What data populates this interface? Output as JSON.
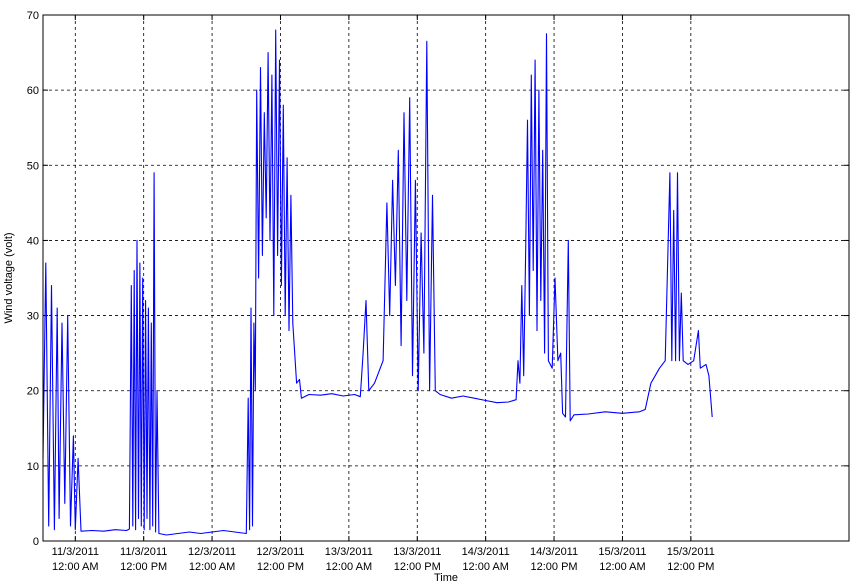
{
  "chart_data": {
    "type": "line",
    "title": "",
    "xlabel": "Time",
    "ylabel": "Wind voltage (volt)",
    "ylim": [
      0,
      70
    ],
    "xlim": [
      "2011-03-10T18:20",
      "2011-03-16T15:45"
    ],
    "yticks": [
      0,
      10,
      20,
      30,
      40,
      50,
      60,
      70
    ],
    "xticks": [
      {
        "x": "2011-03-11T00:00",
        "line1": "11/3/2011",
        "line2": "12:00 AM"
      },
      {
        "x": "2011-03-11T12:00",
        "line1": "11/3/2011",
        "line2": "12:00 PM"
      },
      {
        "x": "2011-03-12T00:00",
        "line1": "12/3/2011",
        "line2": "12:00 AM"
      },
      {
        "x": "2011-03-12T12:00",
        "line1": "12/3/2011",
        "line2": "12:00 PM"
      },
      {
        "x": "2011-03-13T00:00",
        "line1": "13/3/2011",
        "line2": "12:00 AM"
      },
      {
        "x": "2011-03-13T12:00",
        "line1": "13/3/2011",
        "line2": "12:00 PM"
      },
      {
        "x": "2011-03-14T00:00",
        "line1": "14/3/2011",
        "line2": "12:00 AM"
      },
      {
        "x": "2011-03-14T12:00",
        "line1": "14/3/2011",
        "line2": "12:00 PM"
      },
      {
        "x": "2011-03-15T00:00",
        "line1": "15/3/2011",
        "line2": "12:00 AM"
      },
      {
        "x": "2011-03-15T12:00",
        "line1": "15/3/2011",
        "line2": "12:00 PM"
      }
    ],
    "grid": true,
    "grid_style": "dashed",
    "line_color": "#0000ff",
    "series": [
      {
        "values": [
          [
            "2011-03-10T18:20",
            11
          ],
          [
            "2011-03-10T18:50",
            37
          ],
          [
            "2011-03-10T19:20",
            2
          ],
          [
            "2011-03-10T19:50",
            34
          ],
          [
            "2011-03-10T20:20",
            1.5
          ],
          [
            "2011-03-10T20:50",
            31
          ],
          [
            "2011-03-10T21:10",
            3
          ],
          [
            "2011-03-10T21:40",
            29
          ],
          [
            "2011-03-10T22:10",
            5
          ],
          [
            "2011-03-10T22:40",
            30
          ],
          [
            "2011-03-10T23:10",
            2
          ],
          [
            "2011-03-10T23:40",
            14
          ],
          [
            "2011-03-11T00:00",
            1.5
          ],
          [
            "2011-03-11T00:30",
            11
          ],
          [
            "2011-03-11T01:00",
            1.3
          ],
          [
            "2011-03-11T03:00",
            1.4
          ],
          [
            "2011-03-11T05:00",
            1.3
          ],
          [
            "2011-03-11T07:00",
            1.5
          ],
          [
            "2011-03-11T09:00",
            1.4
          ],
          [
            "2011-03-11T09:30",
            1.6
          ],
          [
            "2011-03-11T09:50",
            34
          ],
          [
            "2011-03-11T10:05",
            2
          ],
          [
            "2011-03-11T10:20",
            36
          ],
          [
            "2011-03-11T10:35",
            1.5
          ],
          [
            "2011-03-11T10:50",
            40
          ],
          [
            "2011-03-11T11:05",
            3
          ],
          [
            "2011-03-11T11:20",
            37
          ],
          [
            "2011-03-11T11:35",
            2
          ],
          [
            "2011-03-11T11:50",
            35
          ],
          [
            "2011-03-11T12:05",
            1.5
          ],
          [
            "2011-03-11T12:20",
            32
          ],
          [
            "2011-03-11T12:35",
            3
          ],
          [
            "2011-03-11T12:50",
            31
          ],
          [
            "2011-03-11T13:05",
            1.5
          ],
          [
            "2011-03-11T13:20",
            29
          ],
          [
            "2011-03-11T13:35",
            2
          ],
          [
            "2011-03-11T13:50",
            49
          ],
          [
            "2011-03-11T14:05",
            1.2
          ],
          [
            "2011-03-11T14:20",
            20
          ],
          [
            "2011-03-11T14:40",
            1.0
          ],
          [
            "2011-03-11T16:00",
            0.8
          ],
          [
            "2011-03-11T18:00",
            1.0
          ],
          [
            "2011-03-11T20:00",
            1.2
          ],
          [
            "2011-03-11T22:00",
            1.0
          ],
          [
            "2011-03-12T00:00",
            1.2
          ],
          [
            "2011-03-12T02:00",
            1.4
          ],
          [
            "2011-03-12T04:00",
            1.2
          ],
          [
            "2011-03-12T06:00",
            1.0
          ],
          [
            "2011-03-12T06:20",
            19
          ],
          [
            "2011-03-12T06:35",
            1.5
          ],
          [
            "2011-03-12T06:50",
            31
          ],
          [
            "2011-03-12T07:05",
            2
          ],
          [
            "2011-03-12T07:20",
            29
          ],
          [
            "2011-03-12T07:35",
            20
          ],
          [
            "2011-03-12T07:50",
            60
          ],
          [
            "2011-03-12T08:10",
            35
          ],
          [
            "2011-03-12T08:30",
            63
          ],
          [
            "2011-03-12T08:50",
            38
          ],
          [
            "2011-03-12T09:10",
            57
          ],
          [
            "2011-03-12T09:30",
            43
          ],
          [
            "2011-03-12T09:50",
            65
          ],
          [
            "2011-03-12T10:10",
            40
          ],
          [
            "2011-03-12T10:30",
            62
          ],
          [
            "2011-03-12T10:50",
            30
          ],
          [
            "2011-03-12T11:10",
            68
          ],
          [
            "2011-03-12T11:30",
            38
          ],
          [
            "2011-03-12T11:50",
            64
          ],
          [
            "2011-03-12T12:10",
            34
          ],
          [
            "2011-03-12T12:30",
            58
          ],
          [
            "2011-03-12T12:50",
            30
          ],
          [
            "2011-03-12T13:10",
            51
          ],
          [
            "2011-03-12T13:30",
            28
          ],
          [
            "2011-03-12T13:50",
            46
          ],
          [
            "2011-03-12T14:10",
            29
          ],
          [
            "2011-03-12T14:30",
            25
          ],
          [
            "2011-03-12T14:50",
            21
          ],
          [
            "2011-03-12T15:20",
            21.5
          ],
          [
            "2011-03-12T15:40",
            19
          ],
          [
            "2011-03-12T17:00",
            19.5
          ],
          [
            "2011-03-12T19:00",
            19.4
          ],
          [
            "2011-03-12T21:00",
            19.6
          ],
          [
            "2011-03-12T23:00",
            19.3
          ],
          [
            "2011-03-13T01:00",
            19.5
          ],
          [
            "2011-03-13T02:00",
            19.2
          ],
          [
            "2011-03-13T02:30",
            25
          ],
          [
            "2011-03-13T03:00",
            32
          ],
          [
            "2011-03-13T03:30",
            20
          ],
          [
            "2011-03-13T04:30",
            21
          ],
          [
            "2011-03-13T06:00",
            24
          ],
          [
            "2011-03-13T06:40",
            45
          ],
          [
            "2011-03-13T07:10",
            30
          ],
          [
            "2011-03-13T07:40",
            48
          ],
          [
            "2011-03-13T08:10",
            34
          ],
          [
            "2011-03-13T08:40",
            52
          ],
          [
            "2011-03-13T09:10",
            26
          ],
          [
            "2011-03-13T09:40",
            57
          ],
          [
            "2011-03-13T10:10",
            32
          ],
          [
            "2011-03-13T10:40",
            59
          ],
          [
            "2011-03-13T11:10",
            22
          ],
          [
            "2011-03-13T11:40",
            48
          ],
          [
            "2011-03-13T12:10",
            20
          ],
          [
            "2011-03-13T12:40",
            41
          ],
          [
            "2011-03-13T13:10",
            25
          ],
          [
            "2011-03-13T13:40",
            66.5
          ],
          [
            "2011-03-13T14:10",
            20
          ],
          [
            "2011-03-13T14:40",
            46
          ],
          [
            "2011-03-13T15:10",
            20
          ],
          [
            "2011-03-13T16:00",
            19.5
          ],
          [
            "2011-03-13T18:00",
            19.0
          ],
          [
            "2011-03-13T20:00",
            19.3
          ],
          [
            "2011-03-13T22:00",
            19.0
          ],
          [
            "2011-03-14T00:00",
            18.7
          ],
          [
            "2011-03-14T02:00",
            18.4
          ],
          [
            "2011-03-14T04:00",
            18.5
          ],
          [
            "2011-03-14T05:20",
            18.8
          ],
          [
            "2011-03-14T05:40",
            24
          ],
          [
            "2011-03-14T06:00",
            21
          ],
          [
            "2011-03-14T06:20",
            34
          ],
          [
            "2011-03-14T06:40",
            22
          ],
          [
            "2011-03-14T07:00",
            38
          ],
          [
            "2011-03-14T07:20",
            56
          ],
          [
            "2011-03-14T07:40",
            30
          ],
          [
            "2011-03-14T08:00",
            62
          ],
          [
            "2011-03-14T08:20",
            36
          ],
          [
            "2011-03-14T08:40",
            64
          ],
          [
            "2011-03-14T09:00",
            28
          ],
          [
            "2011-03-14T09:20",
            60
          ],
          [
            "2011-03-14T09:40",
            32
          ],
          [
            "2011-03-14T10:00",
            52
          ],
          [
            "2011-03-14T10:20",
            25
          ],
          [
            "2011-03-14T10:40",
            67.5
          ],
          [
            "2011-03-14T11:00",
            24
          ],
          [
            "2011-03-14T11:40",
            23
          ],
          [
            "2011-03-14T12:10",
            35
          ],
          [
            "2011-03-14T12:40",
            24
          ],
          [
            "2011-03-14T13:10",
            25
          ],
          [
            "2011-03-14T13:30",
            17
          ],
          [
            "2011-03-14T14:00",
            16.5
          ],
          [
            "2011-03-14T14:30",
            40
          ],
          [
            "2011-03-14T14:50",
            16
          ],
          [
            "2011-03-14T15:30",
            16.8
          ],
          [
            "2011-03-14T18:00",
            16.9
          ],
          [
            "2011-03-14T21:00",
            17.2
          ],
          [
            "2011-03-15T00:00",
            17.0
          ],
          [
            "2011-03-15T03:00",
            17.2
          ],
          [
            "2011-03-15T04:00",
            17.5
          ],
          [
            "2011-03-15T05:00",
            21
          ],
          [
            "2011-03-15T06:30",
            23
          ],
          [
            "2011-03-15T07:30",
            24
          ],
          [
            "2011-03-15T08:20",
            49
          ],
          [
            "2011-03-15T08:40",
            24
          ],
          [
            "2011-03-15T09:00",
            44
          ],
          [
            "2011-03-15T09:20",
            24
          ],
          [
            "2011-03-15T09:40",
            49
          ],
          [
            "2011-03-15T10:00",
            24
          ],
          [
            "2011-03-15T10:20",
            33
          ],
          [
            "2011-03-15T10:40",
            24
          ],
          [
            "2011-03-15T11:30",
            23.5
          ],
          [
            "2011-03-15T12:30",
            24
          ],
          [
            "2011-03-15T13:20",
            28
          ],
          [
            "2011-03-15T13:40",
            23
          ],
          [
            "2011-03-15T14:40",
            23.5
          ],
          [
            "2011-03-15T15:10",
            22
          ],
          [
            "2011-03-15T15:45",
            16.5
          ]
        ]
      }
    ]
  }
}
